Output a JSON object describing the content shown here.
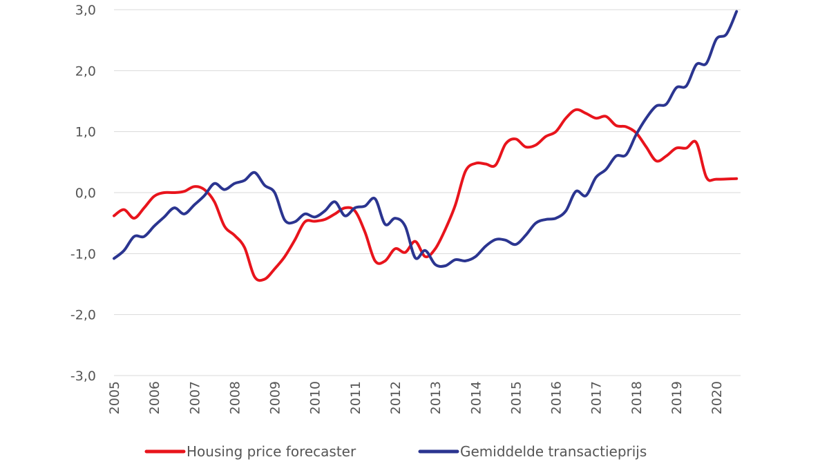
{
  "chart_data": {
    "type": "line",
    "title": "",
    "xlabel": "",
    "ylabel": "",
    "xlim": [
      2005,
      2020.6
    ],
    "ylim": [
      -3,
      3
    ],
    "grid": true,
    "legend_placement": "bottom",
    "y_ticks": [
      {
        "value": 3,
        "label": "3,0"
      },
      {
        "value": 2,
        "label": "2,0"
      },
      {
        "value": 1,
        "label": "1,0"
      },
      {
        "value": 0,
        "label": "0,0"
      },
      {
        "value": -1,
        "label": "-1,0"
      },
      {
        "value": -2,
        "label": "-2,0"
      },
      {
        "value": -3,
        "label": "-3,0"
      }
    ],
    "x_ticks": [
      {
        "value": 2005,
        "label": "2005"
      },
      {
        "value": 2006,
        "label": "2006"
      },
      {
        "value": 2007,
        "label": "2007"
      },
      {
        "value": 2008,
        "label": "2008"
      },
      {
        "value": 2009,
        "label": "2009"
      },
      {
        "value": 2010,
        "label": "2010"
      },
      {
        "value": 2011,
        "label": "2011"
      },
      {
        "value": 2012,
        "label": "2012"
      },
      {
        "value": 2013,
        "label": "2013"
      },
      {
        "value": 2014,
        "label": "2014"
      },
      {
        "value": 2015,
        "label": "2015"
      },
      {
        "value": 2016,
        "label": "2016"
      },
      {
        "value": 2017,
        "label": "2017"
      },
      {
        "value": 2018,
        "label": "2018"
      },
      {
        "value": 2019,
        "label": "2019"
      },
      {
        "value": 2020,
        "label": "2020"
      }
    ],
    "series": [
      {
        "name": "Housing price forecaster",
        "color": "#e8141c",
        "points": [
          [
            2005.0,
            -0.38
          ],
          [
            2005.25,
            -0.28
          ],
          [
            2005.5,
            -0.42
          ],
          [
            2005.75,
            -0.25
          ],
          [
            2006.0,
            -0.06
          ],
          [
            2006.25,
            0.0
          ],
          [
            2006.5,
            0.0
          ],
          [
            2006.75,
            0.02
          ],
          [
            2007.0,
            0.1
          ],
          [
            2007.25,
            0.05
          ],
          [
            2007.5,
            -0.15
          ],
          [
            2007.75,
            -0.55
          ],
          [
            2008.0,
            -0.7
          ],
          [
            2008.25,
            -0.9
          ],
          [
            2008.5,
            -1.38
          ],
          [
            2008.75,
            -1.42
          ],
          [
            2009.0,
            -1.25
          ],
          [
            2009.25,
            -1.05
          ],
          [
            2009.5,
            -0.78
          ],
          [
            2009.75,
            -0.48
          ],
          [
            2010.0,
            -0.47
          ],
          [
            2010.25,
            -0.44
          ],
          [
            2010.5,
            -0.35
          ],
          [
            2010.75,
            -0.25
          ],
          [
            2011.0,
            -0.3
          ],
          [
            2011.25,
            -0.65
          ],
          [
            2011.5,
            -1.12
          ],
          [
            2011.75,
            -1.12
          ],
          [
            2012.0,
            -0.92
          ],
          [
            2012.25,
            -0.98
          ],
          [
            2012.5,
            -0.8
          ],
          [
            2012.75,
            -1.05
          ],
          [
            2013.0,
            -0.92
          ],
          [
            2013.25,
            -0.6
          ],
          [
            2013.5,
            -0.2
          ],
          [
            2013.75,
            0.35
          ],
          [
            2014.0,
            0.48
          ],
          [
            2014.25,
            0.47
          ],
          [
            2014.5,
            0.45
          ],
          [
            2014.75,
            0.8
          ],
          [
            2015.0,
            0.88
          ],
          [
            2015.25,
            0.75
          ],
          [
            2015.5,
            0.78
          ],
          [
            2015.75,
            0.92
          ],
          [
            2016.0,
            1.0
          ],
          [
            2016.25,
            1.22
          ],
          [
            2016.5,
            1.36
          ],
          [
            2016.75,
            1.3
          ],
          [
            2017.0,
            1.22
          ],
          [
            2017.25,
            1.25
          ],
          [
            2017.5,
            1.1
          ],
          [
            2017.75,
            1.08
          ],
          [
            2018.0,
            0.98
          ],
          [
            2018.25,
            0.75
          ],
          [
            2018.5,
            0.52
          ],
          [
            2018.75,
            0.6
          ],
          [
            2019.0,
            0.73
          ],
          [
            2019.25,
            0.73
          ],
          [
            2019.5,
            0.82
          ],
          [
            2019.75,
            0.25
          ],
          [
            2020.0,
            0.22
          ],
          [
            2020.5,
            0.23
          ]
        ]
      },
      {
        "name": "Gemiddelde transactieprijs",
        "color": "#2b3590",
        "points": [
          [
            2005.0,
            -1.08
          ],
          [
            2005.25,
            -0.95
          ],
          [
            2005.5,
            -0.72
          ],
          [
            2005.75,
            -0.72
          ],
          [
            2006.0,
            -0.55
          ],
          [
            2006.25,
            -0.4
          ],
          [
            2006.5,
            -0.25
          ],
          [
            2006.75,
            -0.35
          ],
          [
            2007.0,
            -0.2
          ],
          [
            2007.25,
            -0.05
          ],
          [
            2007.5,
            0.15
          ],
          [
            2007.75,
            0.05
          ],
          [
            2008.0,
            0.15
          ],
          [
            2008.25,
            0.2
          ],
          [
            2008.5,
            0.33
          ],
          [
            2008.75,
            0.12
          ],
          [
            2009.0,
            0.0
          ],
          [
            2009.25,
            -0.45
          ],
          [
            2009.5,
            -0.48
          ],
          [
            2009.75,
            -0.35
          ],
          [
            2010.0,
            -0.4
          ],
          [
            2010.25,
            -0.3
          ],
          [
            2010.5,
            -0.15
          ],
          [
            2010.75,
            -0.38
          ],
          [
            2011.0,
            -0.25
          ],
          [
            2011.25,
            -0.22
          ],
          [
            2011.5,
            -0.1
          ],
          [
            2011.75,
            -0.52
          ],
          [
            2012.0,
            -0.42
          ],
          [
            2012.25,
            -0.55
          ],
          [
            2012.5,
            -1.07
          ],
          [
            2012.75,
            -0.95
          ],
          [
            2013.0,
            -1.18
          ],
          [
            2013.25,
            -1.2
          ],
          [
            2013.5,
            -1.1
          ],
          [
            2013.75,
            -1.12
          ],
          [
            2014.0,
            -1.05
          ],
          [
            2014.25,
            -0.88
          ],
          [
            2014.5,
            -0.77
          ],
          [
            2014.75,
            -0.78
          ],
          [
            2015.0,
            -0.85
          ],
          [
            2015.25,
            -0.7
          ],
          [
            2015.5,
            -0.5
          ],
          [
            2015.75,
            -0.44
          ],
          [
            2016.0,
            -0.42
          ],
          [
            2016.25,
            -0.3
          ],
          [
            2016.5,
            0.02
          ],
          [
            2016.75,
            -0.05
          ],
          [
            2017.0,
            0.25
          ],
          [
            2017.25,
            0.38
          ],
          [
            2017.5,
            0.6
          ],
          [
            2017.75,
            0.62
          ],
          [
            2018.0,
            0.95
          ],
          [
            2018.25,
            1.22
          ],
          [
            2018.5,
            1.42
          ],
          [
            2018.75,
            1.45
          ],
          [
            2019.0,
            1.72
          ],
          [
            2019.25,
            1.75
          ],
          [
            2019.5,
            2.1
          ],
          [
            2019.75,
            2.12
          ],
          [
            2020.0,
            2.52
          ],
          [
            2020.25,
            2.6
          ],
          [
            2020.5,
            2.97
          ]
        ]
      }
    ]
  }
}
